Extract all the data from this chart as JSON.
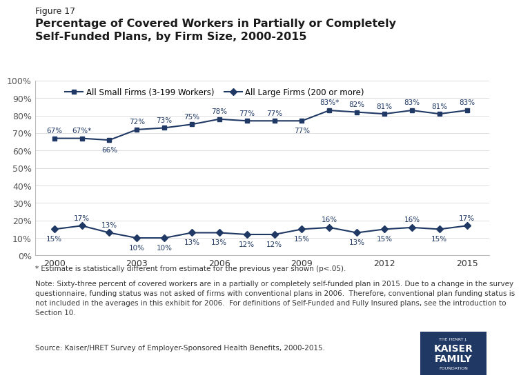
{
  "years": [
    2000,
    2001,
    2002,
    2003,
    2004,
    2005,
    2006,
    2007,
    2008,
    2009,
    2010,
    2011,
    2012,
    2013,
    2014,
    2015
  ],
  "large_firms": [
    0.67,
    0.67,
    0.66,
    0.72,
    0.73,
    0.75,
    0.78,
    0.77,
    0.77,
    0.77,
    0.83,
    0.82,
    0.81,
    0.83,
    0.81,
    0.83
  ],
  "small_firms": [
    0.15,
    0.17,
    0.13,
    0.1,
    0.1,
    0.13,
    0.13,
    0.12,
    0.12,
    0.15,
    0.16,
    0.13,
    0.15,
    0.16,
    0.15,
    0.17
  ],
  "large_labels": [
    "67%",
    "67%*",
    "66%",
    "72%",
    "73%",
    "75%",
    "78%",
    "77%",
    "77%",
    "77%",
    "83%*",
    "82%",
    "81%",
    "83%",
    "81%",
    "83%"
  ],
  "small_labels": [
    "15%",
    "17%",
    "13%",
    "10%",
    "10%",
    "13%",
    "13%",
    "12%",
    "12%",
    "15%",
    "16%",
    "13%",
    "15%",
    "16%",
    "15%",
    "17%"
  ],
  "large_label_va": [
    "bottom",
    "bottom",
    "bottom",
    "bottom",
    "bottom",
    "bottom",
    "bottom",
    "bottom",
    "bottom",
    "bottom",
    "bottom",
    "bottom",
    "bottom",
    "bottom",
    "bottom",
    "bottom"
  ],
  "large_label_dy": [
    0.024,
    0.024,
    -0.036,
    0.024,
    0.024,
    0.024,
    0.024,
    0.024,
    0.024,
    -0.036,
    0.024,
    0.024,
    0.024,
    0.024,
    0.024,
    0.024
  ],
  "small_label_dy": [
    -0.036,
    0.024,
    0.024,
    -0.036,
    -0.036,
    -0.036,
    -0.036,
    -0.036,
    -0.036,
    -0.036,
    0.024,
    -0.036,
    -0.036,
    0.024,
    -0.036,
    0.024
  ],
  "line_color": "#1F3864",
  "background_color": "#FFFFFF",
  "title_line1": "Figure 17",
  "title_line2": "Percentage of Covered Workers in Partially or Completely",
  "title_line3": "Self-Funded Plans, by Firm Size, 2000-2015",
  "legend_small": "All Small Firms (3-199 Workers)",
  "legend_large": "All Large Firms (200 or more)",
  "xticks": [
    2000,
    2003,
    2006,
    2009,
    2012,
    2015
  ],
  "yticks": [
    0.0,
    0.1,
    0.2,
    0.3,
    0.4,
    0.5,
    0.6,
    0.7,
    0.8,
    0.9,
    1.0
  ],
  "ytick_labels": [
    "0%",
    "10%",
    "20%",
    "30%",
    "40%",
    "50%",
    "60%",
    "70%",
    "80%",
    "90%",
    "100%"
  ],
  "footnote1": "* Estimate is statistically different from estimate for the previous year shown (p<.05).",
  "footnote2": "Note: Sixty-three percent of covered workers are in a partially or completely self-funded plan in 2015. Due to a change in the survey\nquestionnaire, funding status was not asked of firms with conventional plans in 2006.  Therefore, conventional plan funding status is\nnot included in the averages in this exhibit for 2006.  For definitions of Self-Funded and Fully Insured plans, see the introduction to\nSection 10.",
  "footnote3": "Source: Kaiser/HRET Survey of Employer-Sponsored Health Benefits, 2000-2015."
}
